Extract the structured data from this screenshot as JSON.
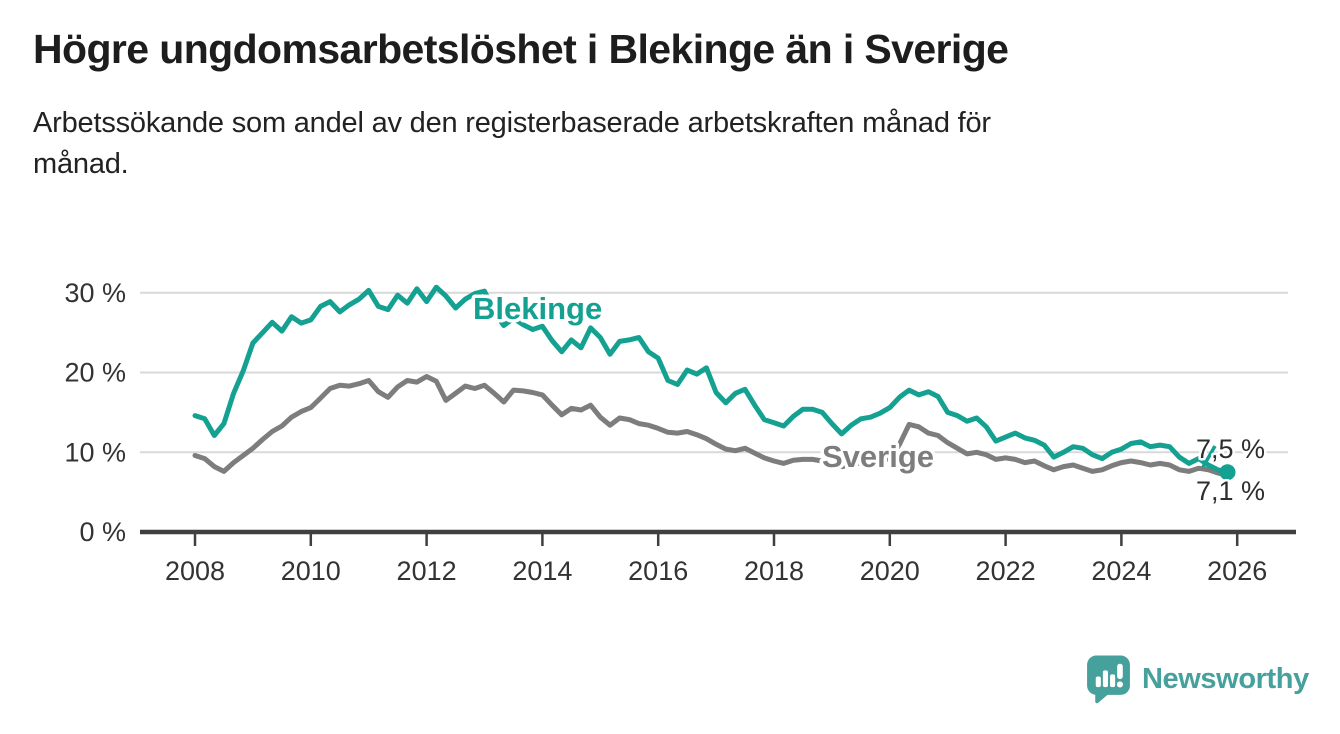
{
  "header": {
    "title": "Högre ungdomsarbetslöshet i Blekinge än i Sverige",
    "subtitle": "Arbetssökande som andel av den registerbaserade arbetskraften månad för\nmånad."
  },
  "chart_data": {
    "type": "line",
    "title": "Högre ungdomsarbetslöshet i Blekinge än i Sverige",
    "subtitle": "Arbetssökande som andel av den registerbaserade arbetskraften månad för månad.",
    "unit": "%",
    "grid": "horizontal",
    "legend_position": "inline-labels-on-lines",
    "x_axis": {
      "ticks": [
        2008,
        2010,
        2012,
        2014,
        2016,
        2018,
        2020,
        2022,
        2024,
        2026
      ]
    },
    "y_axis": {
      "ticks": [
        {
          "value": 0,
          "label": "0 %"
        },
        {
          "value": 10,
          "label": "10 %"
        },
        {
          "value": 20,
          "label": "20 %"
        },
        {
          "value": 30,
          "label": "30 %"
        }
      ],
      "min": 0,
      "max": 31
    },
    "sampling": "every 2 months, Jan 2008 – Nov 2025",
    "start_year": 2008,
    "points_per_year": 6,
    "series": [
      {
        "name": "Blekinge",
        "label": "Blekinge",
        "color": "#14a191",
        "end_label": "7,5 %",
        "end_value": 7.5,
        "end_dot": true,
        "values": [
          14.6,
          14.2,
          12.1,
          13.6,
          17.4,
          20.2,
          23.7,
          25.0,
          26.3,
          25.2,
          27.0,
          26.2,
          26.6,
          28.3,
          28.9,
          27.6,
          28.5,
          29.2,
          30.3,
          28.3,
          27.9,
          29.7,
          28.7,
          30.5,
          28.9,
          30.7,
          29.6,
          28.1,
          29.2,
          29.9,
          30.2,
          27.6,
          25.9,
          26.8,
          26.0,
          25.4,
          25.8,
          24.0,
          22.6,
          24.1,
          23.1,
          25.6,
          24.4,
          22.3,
          23.9,
          24.1,
          24.4,
          22.6,
          21.8,
          19.0,
          18.5,
          20.3,
          19.8,
          20.6,
          17.5,
          16.2,
          17.4,
          17.9,
          15.9,
          14.1,
          13.7,
          13.3,
          14.5,
          15.4,
          15.4,
          15.0,
          13.6,
          12.3,
          13.4,
          14.2,
          14.4,
          14.9,
          15.6,
          16.9,
          17.8,
          17.2,
          17.6,
          17.0,
          15.0,
          14.6,
          13.9,
          14.3,
          13.2,
          11.4,
          11.9,
          12.4,
          11.8,
          11.5,
          10.9,
          9.4,
          10.0,
          10.7,
          10.5,
          9.7,
          9.2,
          10.0,
          10.4,
          11.1,
          11.3,
          10.7,
          10.9,
          10.7,
          9.4,
          8.6,
          9.2,
          8.4,
          7.8,
          7.5
        ]
      },
      {
        "name": "Sverige",
        "label": "Sverige",
        "color": "#7d7d7d",
        "end_label": "7,1 %",
        "end_value": 7.1,
        "end_dot": false,
        "values": [
          9.6,
          9.2,
          8.2,
          7.6,
          8.7,
          9.6,
          10.5,
          11.6,
          12.6,
          13.3,
          14.4,
          15.1,
          15.6,
          16.8,
          18.0,
          18.4,
          18.3,
          18.6,
          19.0,
          17.6,
          16.9,
          18.2,
          19.0,
          18.8,
          19.5,
          18.9,
          16.5,
          17.4,
          18.3,
          18.0,
          18.4,
          17.4,
          16.3,
          17.8,
          17.7,
          17.5,
          17.2,
          15.9,
          14.7,
          15.5,
          15.3,
          15.9,
          14.4,
          13.4,
          14.3,
          14.1,
          13.6,
          13.4,
          13.0,
          12.5,
          12.4,
          12.6,
          12.2,
          11.7,
          11.0,
          10.4,
          10.2,
          10.5,
          9.9,
          9.3,
          8.9,
          8.6,
          9.0,
          9.1,
          9.1,
          8.9,
          8.7,
          8.2,
          8.4,
          8.7,
          8.9,
          9.0,
          9.2,
          11.0,
          13.5,
          13.2,
          12.4,
          12.1,
          11.2,
          10.5,
          9.8,
          10.0,
          9.7,
          9.1,
          9.3,
          9.1,
          8.7,
          8.9,
          8.3,
          7.8,
          8.2,
          8.4,
          8.0,
          7.6,
          7.8,
          8.3,
          8.7,
          8.9,
          8.7,
          8.4,
          8.6,
          8.4,
          7.8,
          7.6,
          8.0,
          7.8,
          7.4,
          7.1
        ]
      }
    ],
    "colors": {
      "blekinge_teal": "#14a191",
      "sverige_gray": "#7d7d7d",
      "gridline": "#d9d9d9",
      "axis": "#3f3f3f"
    }
  },
  "footer": {
    "brand": "Newsworthy",
    "logo_color": "#46a09c"
  }
}
